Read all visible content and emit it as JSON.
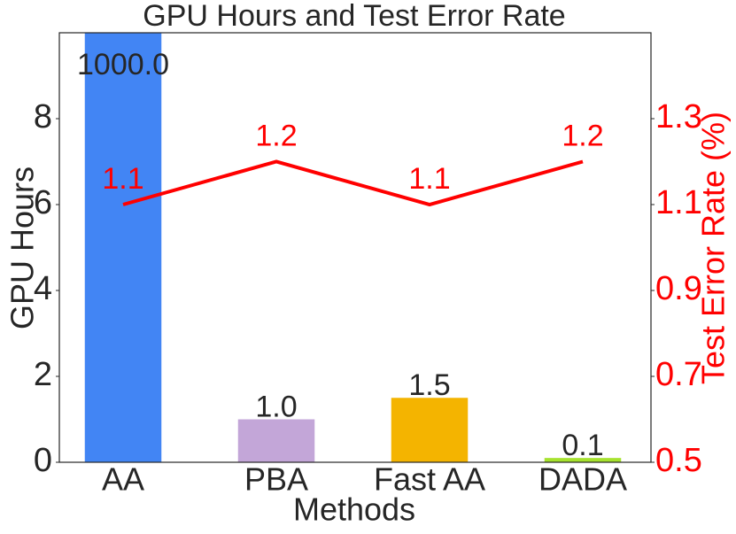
{
  "chart_data": {
    "type": "bar-line",
    "title": "GPU Hours and Test Error Rate",
    "x_label": "Methods",
    "y_label": "GPU Hours",
    "y2_label": "Test Error Rate (%)",
    "categories": [
      "AA",
      "PBA",
      "Fast AA",
      "DADA"
    ],
    "series": [
      {
        "name": "GPU Hours",
        "type": "bar",
        "colors": [
          "#4285f4",
          "#c3a6d8",
          "#f4b400",
          "#a6e22e"
        ],
        "values": [
          1000,
          1,
          1.5,
          0.1
        ],
        "value_labels": [
          "1000.0",
          "1.0",
          "1.5",
          "0.1"
        ]
      },
      {
        "name": "Test Error Rate",
        "type": "line",
        "axis": "y2",
        "color": "#ff0000",
        "values": [
          1.1,
          1.2,
          1.1,
          1.2
        ]
      }
    ],
    "ylim": [
      0,
      10
    ],
    "yticks": [
      0,
      2,
      4,
      6,
      8
    ],
    "y2lim": [
      0.5,
      1.5
    ],
    "y2ticks": [
      0.5,
      0.7,
      0.9,
      1.1,
      1.3
    ],
    "y2_color": "#ff0000"
  }
}
